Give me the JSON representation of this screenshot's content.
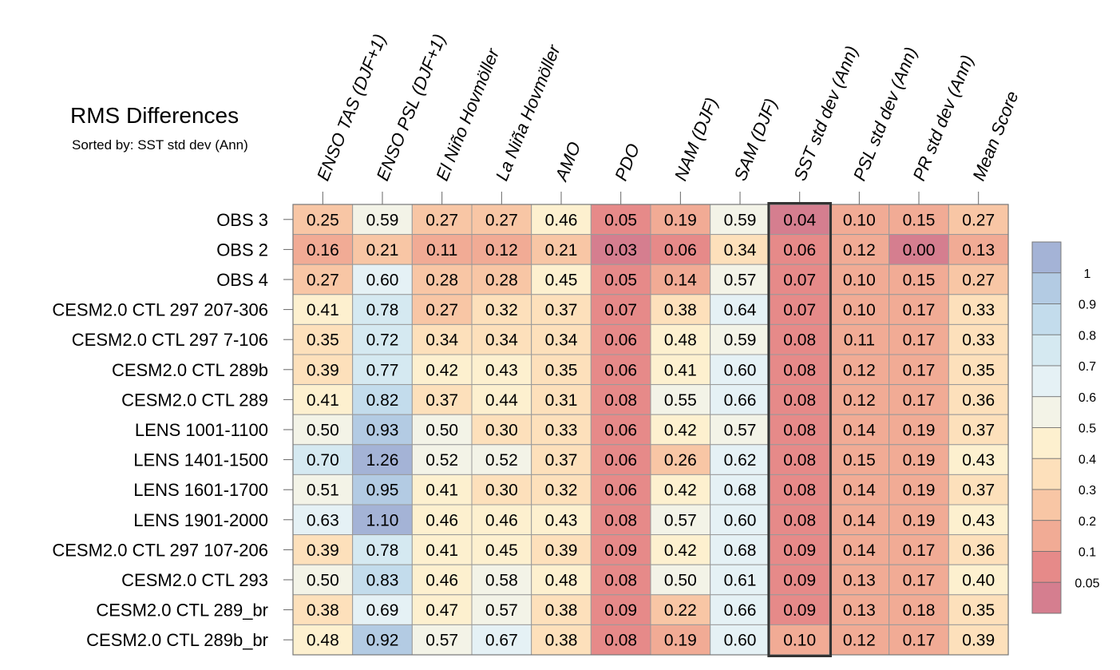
{
  "chart_data": {
    "type": "heatmap",
    "title": "RMS Differences",
    "subtitle": "Sorted by: SST std dev (Ann)",
    "highlighted_column": "SST std dev (Ann)",
    "columns": [
      "ENSO TAS (DJF+1)",
      "ENSO PSL (DJF+1)",
      "El Niño Hovmöller",
      "La Niña Hovmöller",
      "AMO",
      "PDO",
      "NAM (DJF)",
      "SAM (DJF)",
      "SST std dev (Ann)",
      "PSL std dev (Ann)",
      "PR std dev (Ann)",
      "Mean Score"
    ],
    "rows": [
      "OBS 3",
      "OBS 2",
      "OBS 4",
      "CESM2.0 CTL 297 207-306",
      "CESM2.0 CTL 297 7-106",
      "CESM2.0 CTL 289b",
      "CESM2.0 CTL 289",
      "LENS 1001-1100",
      "LENS 1401-1500",
      "LENS 1601-1700",
      "LENS 1901-2000",
      "CESM2.0 CTL 297 107-206",
      "CESM2.0 CTL 293",
      "CESM2.0 CTL 289_br",
      "CESM2.0 CTL 289b_br"
    ],
    "values": [
      [
        "0.25",
        "0.59",
        "0.27",
        "0.27",
        "0.46",
        "0.05",
        "0.19",
        "0.59",
        "0.04",
        "0.10",
        "0.15",
        "0.27"
      ],
      [
        "0.16",
        "0.21",
        "0.11",
        "0.12",
        "0.21",
        "0.03",
        "0.06",
        "0.34",
        "0.06",
        "0.12",
        "0.00",
        "0.13"
      ],
      [
        "0.27",
        "0.60",
        "0.28",
        "0.28",
        "0.45",
        "0.05",
        "0.14",
        "0.57",
        "0.07",
        "0.10",
        "0.15",
        "0.27"
      ],
      [
        "0.41",
        "0.78",
        "0.27",
        "0.32",
        "0.37",
        "0.07",
        "0.38",
        "0.64",
        "0.07",
        "0.10",
        "0.17",
        "0.33"
      ],
      [
        "0.35",
        "0.72",
        "0.34",
        "0.34",
        "0.34",
        "0.06",
        "0.48",
        "0.59",
        "0.08",
        "0.11",
        "0.17",
        "0.33"
      ],
      [
        "0.39",
        "0.77",
        "0.42",
        "0.43",
        "0.35",
        "0.06",
        "0.41",
        "0.60",
        "0.08",
        "0.12",
        "0.17",
        "0.35"
      ],
      [
        "0.41",
        "0.82",
        "0.37",
        "0.44",
        "0.31",
        "0.08",
        "0.55",
        "0.66",
        "0.08",
        "0.12",
        "0.17",
        "0.36"
      ],
      [
        "0.50",
        "0.93",
        "0.50",
        "0.30",
        "0.33",
        "0.06",
        "0.42",
        "0.57",
        "0.08",
        "0.14",
        "0.19",
        "0.37"
      ],
      [
        "0.70",
        "1.26",
        "0.52",
        "0.52",
        "0.37",
        "0.06",
        "0.26",
        "0.62",
        "0.08",
        "0.15",
        "0.19",
        "0.43"
      ],
      [
        "0.51",
        "0.95",
        "0.41",
        "0.30",
        "0.32",
        "0.06",
        "0.42",
        "0.68",
        "0.08",
        "0.14",
        "0.19",
        "0.37"
      ],
      [
        "0.63",
        "1.10",
        "0.46",
        "0.46",
        "0.43",
        "0.08",
        "0.57",
        "0.60",
        "0.08",
        "0.14",
        "0.19",
        "0.43"
      ],
      [
        "0.39",
        "0.78",
        "0.41",
        "0.45",
        "0.39",
        "0.09",
        "0.42",
        "0.68",
        "0.09",
        "0.14",
        "0.17",
        "0.36"
      ],
      [
        "0.50",
        "0.83",
        "0.46",
        "0.58",
        "0.48",
        "0.08",
        "0.50",
        "0.61",
        "0.09",
        "0.13",
        "0.17",
        "0.40"
      ],
      [
        "0.38",
        "0.69",
        "0.47",
        "0.57",
        "0.38",
        "0.09",
        "0.22",
        "0.66",
        "0.09",
        "0.13",
        "0.18",
        "0.35"
      ],
      [
        "0.48",
        "0.92",
        "0.57",
        "0.67",
        "0.38",
        "0.08",
        "0.19",
        "0.60",
        "0.10",
        "0.12",
        "0.17",
        "0.39"
      ]
    ],
    "colorbar": {
      "levels": [
        "1",
        "0.9",
        "0.8",
        "0.7",
        "0.6",
        "0.5",
        "0.4",
        "0.3",
        "0.2",
        "0.1",
        "0.05"
      ],
      "thresholds": [
        1,
        0.9,
        0.8,
        0.7,
        0.6,
        0.5,
        0.4,
        0.3,
        0.2,
        0.1,
        0.05
      ],
      "colors": [
        "#a4b3d6",
        "#b3cbe3",
        "#c3dcec",
        "#d5e9f1",
        "#e5f1f5",
        "#f3f3e7",
        "#fdf0cf",
        "#fde0bb",
        "#f8c6a5",
        "#f1ab95",
        "#e68a89",
        "#d57e8f"
      ]
    }
  }
}
